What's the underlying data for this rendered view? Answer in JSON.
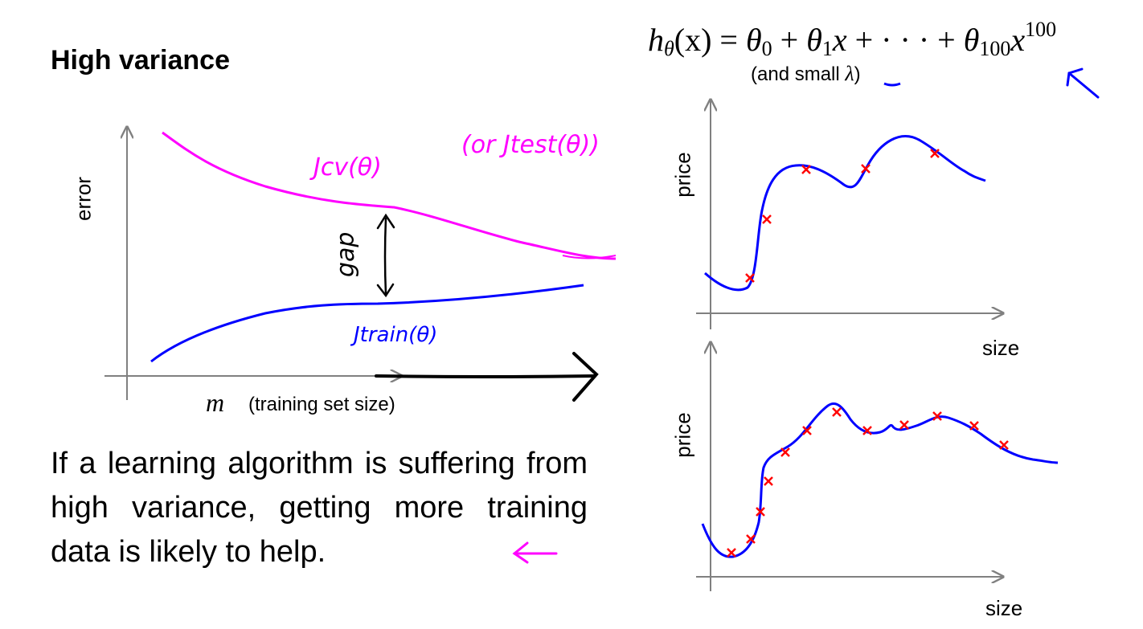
{
  "title": "High variance",
  "formula": {
    "lhs_h": "h",
    "lhs_sub": "θ",
    "lhs_arg": "(x) = ",
    "t0": "θ",
    "t0_sub": "0",
    "plus1": " + ",
    "t1": "θ",
    "t1_sub": "1",
    "t1_x": "x",
    "mid": " + · · · + ",
    "t100": "θ",
    "t100_sub": "100",
    "t100_x": "x",
    "t100_sup": "100",
    "note_prefix": "(and small ",
    "note_lambda": "λ",
    "note_suffix": ")"
  },
  "learning_curve": {
    "ylabel": "error",
    "xlabel_symbol": "m",
    "xlabel_text": "(training set size)",
    "cv_label": "Jcv(θ)",
    "test_label": "(or Jtest(θ))",
    "train_label": "Jtrain(θ)",
    "gap_label": "gap",
    "colors": {
      "cv": "#ff00ff",
      "train": "#0000ff",
      "axis": "#808080",
      "ink": "#000000"
    }
  },
  "fits": {
    "ylabel": "price",
    "xlabel": "size",
    "colors": {
      "curve": "#0000ff",
      "points": "#ff0000",
      "axis": "#808080"
    }
  },
  "conclusion": "If a learning algorithm is suffering from high variance, getting more training data is likely to help."
}
